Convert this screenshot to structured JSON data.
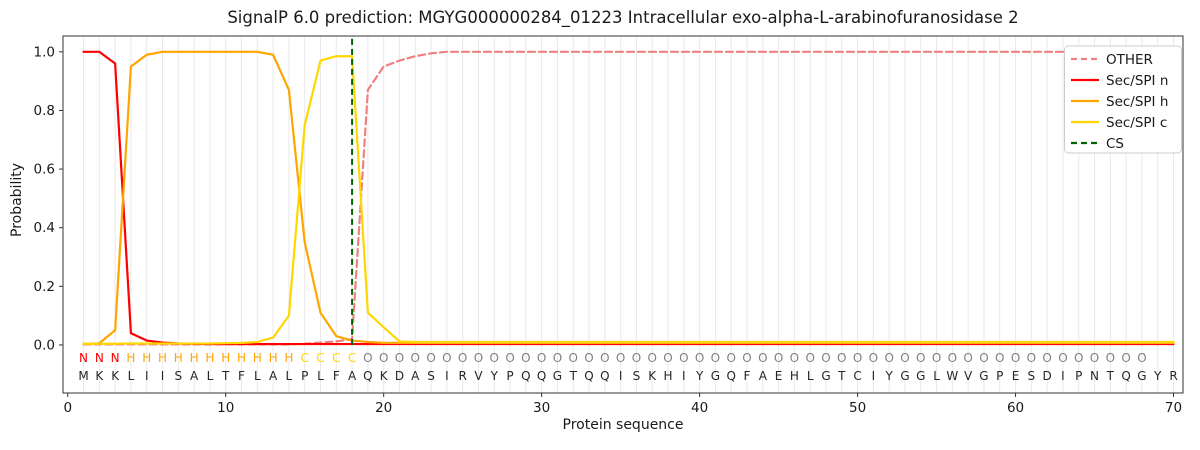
{
  "chart_data": {
    "type": "line",
    "title": "SignalP 6.0 prediction: MGYG000000284_01223 Intracellular exo-alpha-L-arabinofuranosidase 2",
    "xlabel": "Protein sequence",
    "ylabel": "Probability",
    "xlim": [
      -0.3,
      70.6
    ],
    "ylim": [
      -0.164,
      1.054
    ],
    "xticks": [
      0,
      10,
      20,
      30,
      40,
      50,
      60,
      70
    ],
    "yticks": [
      0.0,
      0.2,
      0.4,
      0.6,
      0.8,
      1.0
    ],
    "grid": "vertical line at every residue position",
    "legend_position": "top-right",
    "x_start": 1,
    "x_step": 1,
    "n_positions": 70,
    "series": [
      {
        "name": "OTHER",
        "color": "#f08080",
        "style": "dashed",
        "values": [
          0.002,
          0.002,
          0.002,
          0.002,
          0.002,
          0.002,
          0.002,
          0.002,
          0.002,
          0.002,
          0.002,
          0.002,
          0.002,
          0.002,
          0.004,
          0.008,
          0.012,
          0.02,
          0.87,
          0.95,
          0.97,
          0.985,
          0.995,
          1.0,
          1.0,
          1.0,
          1.0,
          1.0,
          1.0,
          1.0,
          1.0,
          1.0,
          1.0,
          1.0,
          1.0,
          1.0,
          1.0,
          1.0,
          1.0,
          1.0,
          1.0,
          1.0,
          1.0,
          1.0,
          1.0,
          1.0,
          1.0,
          1.0,
          1.0,
          1.0,
          1.0,
          1.0,
          1.0,
          1.0,
          1.0,
          1.0,
          1.0,
          1.0,
          1.0,
          1.0,
          1.0,
          1.0,
          1.0,
          1.0,
          1.0,
          1.0,
          1.0,
          1.0,
          1.0,
          1.0
        ]
      },
      {
        "name": "Sec/SPI n",
        "color": "#ff0000",
        "style": "solid",
        "values": [
          1.0,
          1.0,
          0.96,
          0.04,
          0.015,
          0.008,
          0.005,
          0.004,
          0.003,
          0.003,
          0.003,
          0.003,
          0.003,
          0.003,
          0.003,
          0.003,
          0.003,
          0.003,
          0.003,
          0.003,
          0.003,
          0.003,
          0.003,
          0.003,
          0.003,
          0.003,
          0.003,
          0.003,
          0.003,
          0.003,
          0.003,
          0.003,
          0.003,
          0.003,
          0.003,
          0.003,
          0.003,
          0.003,
          0.003,
          0.003,
          0.003,
          0.003,
          0.003,
          0.003,
          0.003,
          0.003,
          0.003,
          0.003,
          0.003,
          0.003,
          0.003,
          0.003,
          0.003,
          0.003,
          0.003,
          0.003,
          0.003,
          0.003,
          0.003,
          0.003,
          0.003,
          0.003,
          0.003,
          0.003,
          0.003,
          0.003,
          0.003,
          0.003,
          0.003,
          0.003
        ]
      },
      {
        "name": "Sec/SPI h",
        "color": "#ffa500",
        "style": "solid",
        "values": [
          0.003,
          0.006,
          0.05,
          0.95,
          0.99,
          1.0,
          1.0,
          1.0,
          1.0,
          1.0,
          1.0,
          1.0,
          0.99,
          0.87,
          0.35,
          0.11,
          0.03,
          0.015,
          0.01,
          0.007,
          0.007,
          0.007,
          0.007,
          0.007,
          0.007,
          0.007,
          0.007,
          0.007,
          0.007,
          0.007,
          0.007,
          0.007,
          0.007,
          0.007,
          0.007,
          0.007,
          0.007,
          0.007,
          0.007,
          0.007,
          0.007,
          0.007,
          0.007,
          0.007,
          0.007,
          0.007,
          0.007,
          0.007,
          0.007,
          0.007,
          0.007,
          0.007,
          0.007,
          0.007,
          0.007,
          0.007,
          0.007,
          0.007,
          0.007,
          0.007,
          0.007,
          0.007,
          0.007,
          0.007,
          0.007,
          0.007,
          0.007,
          0.007,
          0.007,
          0.007
        ]
      },
      {
        "name": "Sec/SPI c",
        "color": "#ffd700",
        "style": "solid",
        "values": [
          0.004,
          0.004,
          0.004,
          0.005,
          0.005,
          0.005,
          0.005,
          0.005,
          0.005,
          0.006,
          0.007,
          0.01,
          0.025,
          0.1,
          0.75,
          0.97,
          0.985,
          0.985,
          0.11,
          0.06,
          0.012,
          0.01,
          0.01,
          0.01,
          0.01,
          0.01,
          0.01,
          0.01,
          0.01,
          0.01,
          0.01,
          0.01,
          0.01,
          0.01,
          0.01,
          0.01,
          0.01,
          0.01,
          0.01,
          0.01,
          0.01,
          0.01,
          0.01,
          0.01,
          0.01,
          0.01,
          0.01,
          0.01,
          0.01,
          0.01,
          0.01,
          0.01,
          0.01,
          0.01,
          0.01,
          0.01,
          0.01,
          0.01,
          0.01,
          0.01,
          0.01,
          0.01,
          0.01,
          0.01,
          0.01,
          0.01,
          0.01,
          0.01,
          0.01,
          0.01
        ]
      }
    ],
    "cs": {
      "name": "CS",
      "position": 18,
      "color": "#006400",
      "style": "dashed",
      "y_span": [
        0,
        1.05
      ]
    },
    "sequence": "MKKLIISALTFLALPLFAQKDASIRVYPQQGTQQISKHIYGQFAEHLGTCIYGGLWVGPESDIPNTQGYR",
    "region_labels": "NNNHHHHHHHHHHHCCCCOOOOOOOOOOOOOOOOOOOOOOOOOOOOOOOOOOOOOOOOOOOOOOOOOO",
    "region_colors": {
      "N": "#ff0000",
      "H": "#ffa500",
      "C": "#ffd700",
      "O": "#808080"
    },
    "sequence_color": "#262626"
  }
}
